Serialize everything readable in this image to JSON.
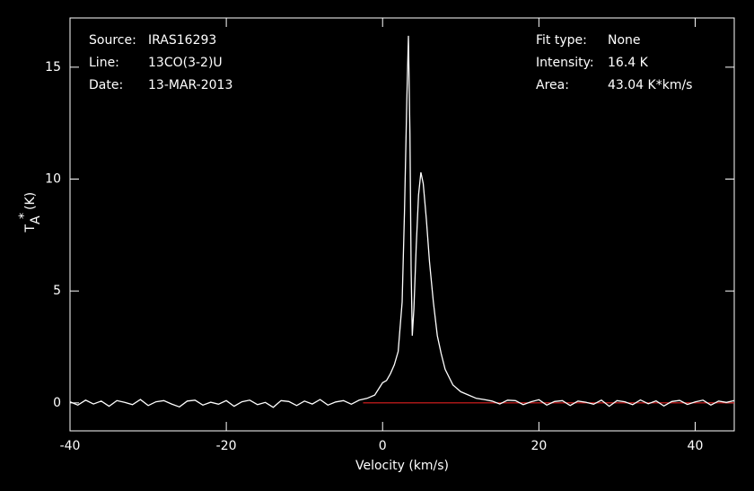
{
  "chart_data": {
    "type": "line",
    "xlabel": "Velocity (km/s)",
    "ylabel_main": "T",
    "ylabel_sup": "*",
    "ylabel_sub": "A",
    "ylabel_unit": "(K)",
    "info_left": [
      {
        "label": "Source:",
        "value": "IRAS16293"
      },
      {
        "label": "Line:",
        "value": "13CO(3-2)U"
      },
      {
        "label": "Date:",
        "value": "13-MAR-2013"
      }
    ],
    "info_right": [
      {
        "label": "Fit type:",
        "value": "None"
      },
      {
        "label": "Intensity:",
        "value": "16.4 K"
      },
      {
        "label": "Area:",
        "value": "43.04 K*km/s"
      }
    ],
    "xlim": [
      -40,
      45
    ],
    "ylim": [
      -1.25,
      17.2
    ],
    "xticks": [
      -40,
      -20,
      0,
      20,
      40
    ],
    "yticks": [
      0,
      5,
      10,
      15
    ],
    "background": "#000000",
    "baseline": {
      "value": 0,
      "xlim": [
        -2.5,
        45
      ],
      "color": "#e02020"
    },
    "x": [
      -40,
      -39,
      -38,
      -37,
      -36,
      -35,
      -34,
      -33,
      -32,
      -31,
      -30,
      -29,
      -28,
      -27,
      -26,
      -25,
      -24,
      -23,
      -22,
      -21,
      -20,
      -19,
      -18,
      -17,
      -16,
      -15,
      -14,
      -13,
      -12,
      -11,
      -10,
      -9,
      -8,
      -7,
      -6,
      -5,
      -4,
      -3,
      -2,
      -1,
      0,
      0.5,
      1,
      1.5,
      2,
      2.5,
      2.8,
      3.1,
      3.3,
      3.5,
      3.65,
      3.8,
      4.0,
      4.3,
      4.6,
      4.9,
      5.2,
      5.6,
      6,
      6.5,
      7,
      7.5,
      8,
      9,
      10,
      11,
      12,
      13,
      14,
      15,
      16,
      17,
      18,
      19,
      20,
      21,
      22,
      23,
      24,
      25,
      26,
      27,
      28,
      29,
      30,
      31,
      32,
      33,
      34,
      35,
      36,
      37,
      38,
      39,
      40,
      41,
      42,
      43,
      44,
      45
    ],
    "series": [
      {
        "color": "#ffffff",
        "values": [
          0.05,
          -0.1,
          0.12,
          -0.05,
          0.08,
          -0.15,
          0.1,
          0.02,
          -0.08,
          0.15,
          -0.12,
          0.05,
          0.1,
          -0.05,
          -0.18,
          0.08,
          0.12,
          -0.1,
          0.03,
          -0.06,
          0.1,
          -0.15,
          0.05,
          0.12,
          -0.08,
          0.02,
          -0.2,
          0.1,
          0.06,
          -0.12,
          0.08,
          -0.05,
          0.15,
          -0.1,
          0.04,
          0.1,
          -0.06,
          0.12,
          0.2,
          0.35,
          0.9,
          1.0,
          1.3,
          1.7,
          2.3,
          4.5,
          8.5,
          13.5,
          16.4,
          12,
          6,
          3.0,
          4.2,
          7,
          9.3,
          10.3,
          9.8,
          8.2,
          6.3,
          4.5,
          3.0,
          2.2,
          1.5,
          0.8,
          0.5,
          0.35,
          0.2,
          0.15,
          0.08,
          -0.05,
          0.12,
          0.1,
          -0.08,
          0.05,
          0.14,
          -0.1,
          0.06,
          0.1,
          -0.12,
          0.08,
          0.03,
          -0.06,
          0.12,
          -0.15,
          0.1,
          0.05,
          -0.08,
          0.13,
          -0.04,
          0.09,
          -0.14,
          0.06,
          0.11,
          -0.07,
          0.04,
          0.12,
          -0.1,
          0.08,
          0.02,
          0.1
        ]
      }
    ]
  }
}
